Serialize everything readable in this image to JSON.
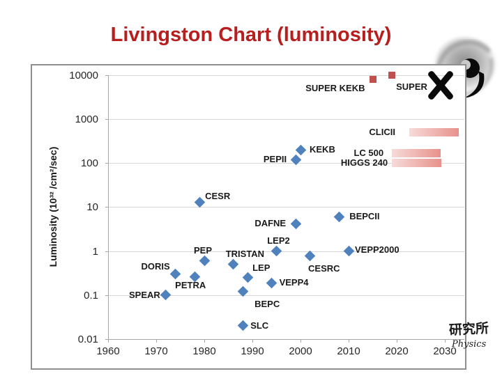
{
  "slide": {
    "title": "Livingston Chart (luminosity)",
    "title_color": "#b71f1f"
  },
  "logo": {
    "cn_text": "研究所",
    "en_text": "Physics"
  },
  "chart_data": {
    "type": "scatter",
    "title": "Livingston Chart (luminosity)",
    "xlabel": "",
    "ylabel": "Luminosity (10³² /cm²/sec)",
    "x_ticks": [
      1960,
      1970,
      1980,
      1990,
      2000,
      2010,
      2020,
      2030
    ],
    "y_ticks": [
      10000,
      1000,
      100,
      10,
      1,
      0.1,
      0.01
    ],
    "xlim": [
      1960,
      2034
    ],
    "ylim": [
      0.01,
      10000
    ],
    "log_y": true,
    "grid": "horizontal",
    "colors": {
      "gridline": "#d6d6d6",
      "axis": "#a6a6a6",
      "tick_label": "#262626",
      "point_label": "#1a1a1a",
      "diamond": "#4f81bd",
      "square": "#c0504d",
      "bar_gradient_left": "#f6dbd9",
      "bar_gradient_right": "#e8918b",
      "cross": "#0a0a0a"
    },
    "series": [
      {
        "name": "existing-colliders",
        "marker": "diamond",
        "color": "#4f81bd",
        "points": [
          {
            "label": "SPEAR",
            "year": 1972,
            "lum": 0.1,
            "side": "left",
            "nudge": [
              0,
              0
            ]
          },
          {
            "label": "DORIS",
            "year": 1974,
            "lum": 0.3,
            "side": "left",
            "nudge": [
              0,
              -11
            ]
          },
          {
            "label": "PETRA",
            "year": 1978,
            "lum": 0.26,
            "side": "below",
            "nudge": [
              -6,
              -3
            ]
          },
          {
            "label": "CESR",
            "year": 1979,
            "lum": 13,
            "side": "right",
            "nudge": [
              0,
              -8
            ]
          },
          {
            "label": "PEP",
            "year": 1980,
            "lum": 0.6,
            "side": "above",
            "nudge": [
              -2,
              0
            ]
          },
          {
            "label": "TRISTAN",
            "year": 1986,
            "lum": 0.5,
            "side": "above",
            "nudge": [
              17,
              0
            ]
          },
          {
            "label": "BEPC",
            "year": 1988,
            "lum": 0.12,
            "side": "below",
            "nudge": [
              35,
              3
            ]
          },
          {
            "label": "SLC",
            "year": 1988,
            "lum": 0.02,
            "side": "right",
            "nudge": [
              3,
              0
            ]
          },
          {
            "label": "LEP",
            "year": 1989,
            "lum": 0.25,
            "side": "right",
            "nudge": [
              -1,
              -14
            ]
          },
          {
            "label": "VEPP4",
            "year": 1994,
            "lum": 0.19,
            "side": "right",
            "nudge": [
              3,
              0
            ]
          },
          {
            "label": "LEP2",
            "year": 1995,
            "lum": 1.0,
            "side": "above",
            "nudge": [
              3,
              0
            ]
          },
          {
            "label": "DAFNE",
            "year": 1999,
            "lum": 4.2,
            "side": "left",
            "nudge": [
              -6,
              0
            ]
          },
          {
            "label": "PEPII",
            "year": 1999,
            "lum": 120,
            "side": "left",
            "nudge": [
              -5,
              0
            ]
          },
          {
            "label": "KEKB",
            "year": 2000,
            "lum": 200,
            "side": "right",
            "nudge": [
              5,
              0
            ]
          },
          {
            "label": "CESRC",
            "year": 2002,
            "lum": 0.77,
            "side": "below",
            "nudge": [
              20,
              3
            ]
          },
          {
            "label": "BEPCII",
            "year": 2008,
            "lum": 6,
            "side": "right",
            "nudge": [
              7,
              0
            ]
          },
          {
            "label": "VEPP2000",
            "year": 2010,
            "lum": 1.0,
            "side": "right",
            "nudge": [
              1,
              -2
            ]
          }
        ]
      },
      {
        "name": "future-super-b-factories",
        "marker": "square",
        "color": "#c0504d",
        "points": [
          {
            "label": "SUPER KEKB",
            "year": 2015,
            "lum": 8000,
            "side": "left",
            "nudge": [
              -3,
              13
            ]
          },
          {
            "label": "SUPER",
            "year": 2019,
            "lum": 10000,
            "side": "right",
            "nudge": [
              -2,
              17
            ],
            "crossed_out": true
          }
        ]
      }
    ],
    "range_bars": [
      {
        "label": "CLICII",
        "year_start": 2022.6,
        "year_end": 2032.9,
        "lum": 500,
        "label_gap": 20
      },
      {
        "label": "LC 500",
        "year_start": 2019.0,
        "year_end": 2029.2,
        "lum": 170,
        "label_gap": 12
      },
      {
        "label": "HIGGS 240",
        "year_start": 2019.0,
        "year_end": 2029.3,
        "lum": 100,
        "label_gap": 6
      }
    ]
  }
}
